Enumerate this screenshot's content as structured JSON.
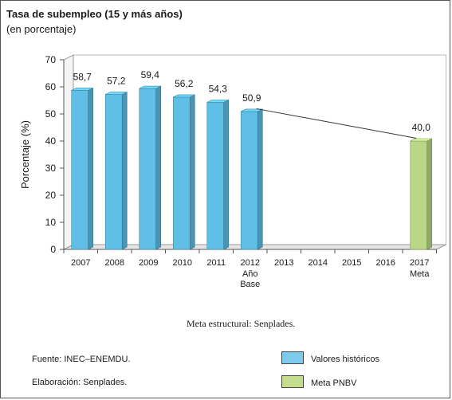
{
  "chart_data": {
    "type": "bar",
    "title": "Tasa de subempleo (15 y más años)",
    "subtitle": "(en porcentaje)",
    "ylabel": "Porcentaje (%)",
    "ylim": [
      0,
      70
    ],
    "yticks": [
      0,
      10,
      20,
      30,
      40,
      50,
      60,
      70
    ],
    "grid": false,
    "categories": [
      "2007",
      "2008",
      "2009",
      "2010",
      "2011",
      "2012",
      "2013",
      "2014",
      "2015",
      "2016",
      "2017"
    ],
    "category_sublabels": {
      "5": [
        "Año",
        "Base"
      ],
      "10": [
        "Meta"
      ]
    },
    "series": [
      {
        "name": "Valores históricos",
        "color": "#5fbfe6",
        "values": [
          58.7,
          57.2,
          59.4,
          56.2,
          54.3,
          50.9,
          null,
          null,
          null,
          null,
          null
        ],
        "labels": [
          "58,7",
          "57,2",
          "59,4",
          "56,2",
          "54,3",
          "50,9",
          "",
          "",
          "",
          "",
          ""
        ]
      },
      {
        "name": "Meta PNBV",
        "color": "#b9d886",
        "values": [
          null,
          null,
          null,
          null,
          null,
          null,
          null,
          null,
          null,
          null,
          40.0
        ],
        "labels": [
          "",
          "",
          "",
          "",
          "",
          "",
          "",
          "",
          "",
          "",
          "40,0"
        ]
      }
    ],
    "trend_line": {
      "from_category": "2012",
      "from_value": 50.9,
      "to_category": "2017",
      "to_value": 40.0
    },
    "legend_position": "bottom-right",
    "bar_style": "3d"
  },
  "notes": {
    "source_line": "Meta estructural: Senplades.",
    "fuente": "Fuente: INEC–ENEMDU.",
    "elaboracion": "Elaboración: Senplades."
  },
  "legend": [
    {
      "label": "Valores históricos",
      "color": "#7dcaec"
    },
    {
      "label": "Meta PNBV",
      "color": "#c3dc8e"
    }
  ]
}
